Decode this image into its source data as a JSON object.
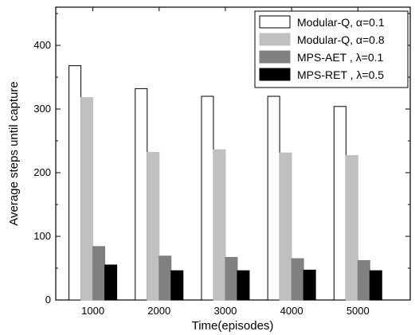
{
  "chart_data": {
    "type": "bar",
    "title": "",
    "xlabel": "Time(episodes)",
    "ylabel": "Average steps until capture",
    "categories": [
      "1000",
      "2000",
      "3000",
      "4000",
      "5000"
    ],
    "ylim": [
      0,
      460
    ],
    "yticks": [
      0,
      100,
      200,
      300,
      400
    ],
    "grid": false,
    "legend_position": "top-right",
    "series": [
      {
        "name": "Modular-Q, α=0.1",
        "values": [
          368,
          332,
          320,
          320,
          304
        ],
        "fill": "#ffffff",
        "stroke": "#000000"
      },
      {
        "name": "Modular-Q, α=0.8",
        "values": [
          318,
          232,
          236,
          231,
          227
        ],
        "fill": "#c0c0c0",
        "stroke": "#c0c0c0"
      },
      {
        "name": "MPS-AET , λ=0.1",
        "values": [
          84,
          69,
          67,
          65,
          62
        ],
        "fill": "#808080",
        "stroke": "#808080"
      },
      {
        "name": "MPS-RET , λ=0.5",
        "values": [
          55,
          46,
          46,
          47,
          46
        ],
        "fill": "#000000",
        "stroke": "#000000"
      }
    ]
  }
}
